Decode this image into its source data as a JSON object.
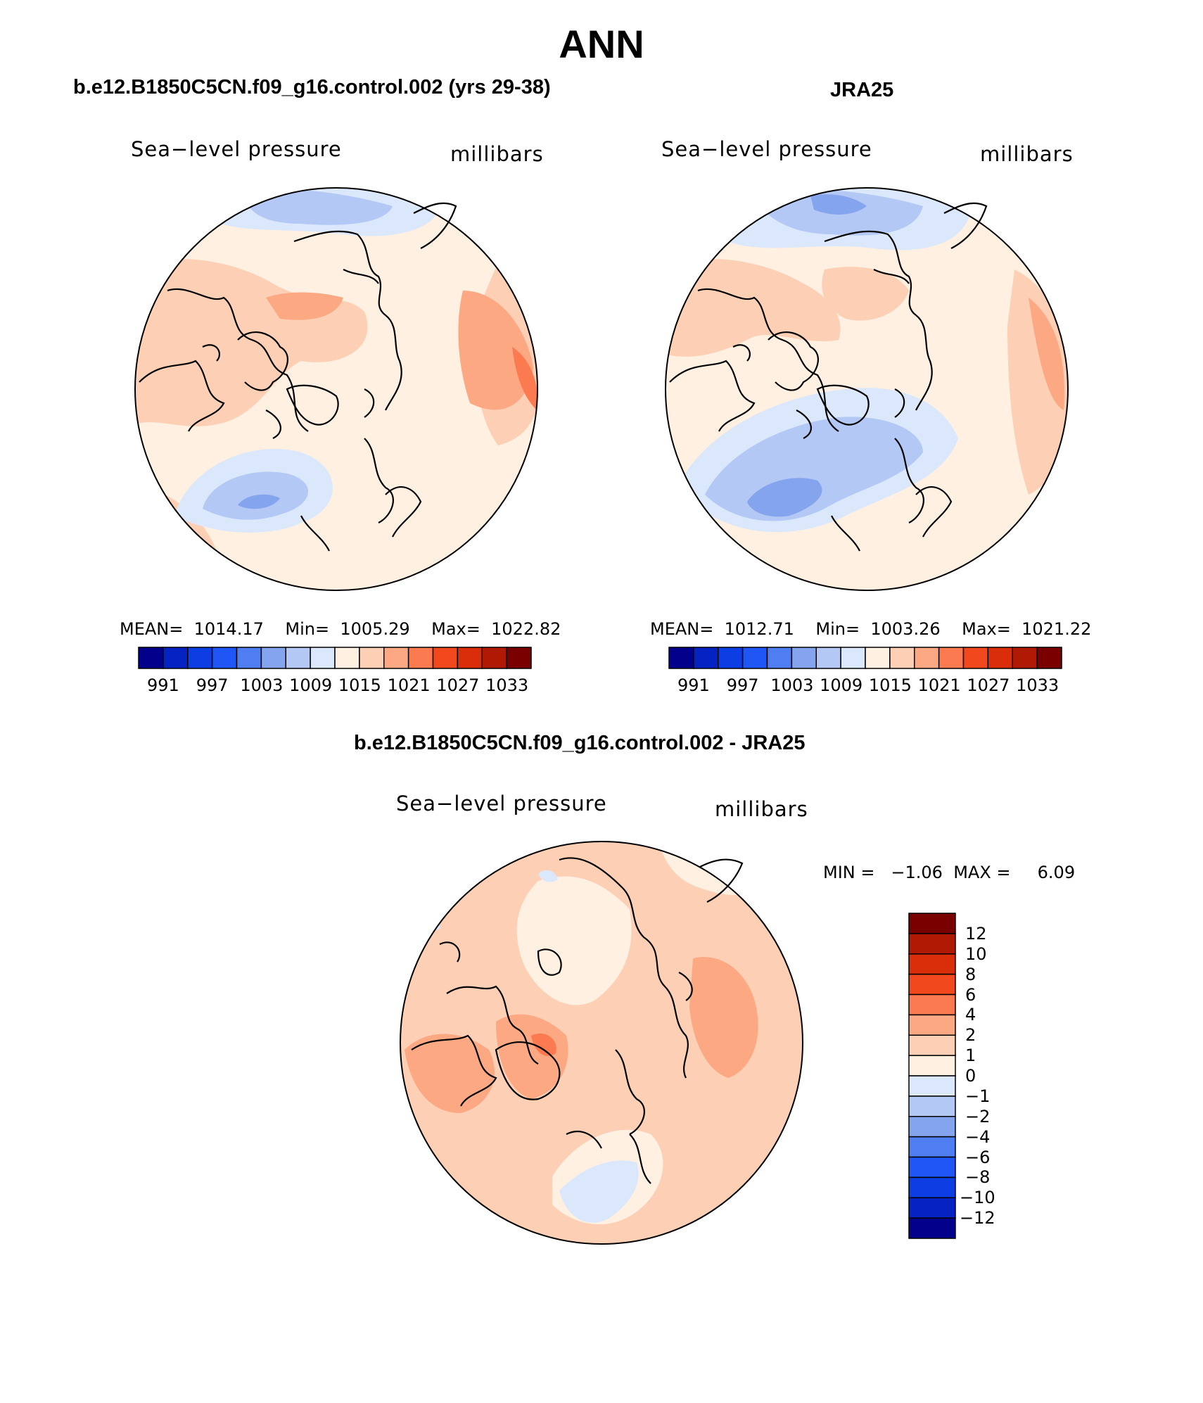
{
  "title": "ANN",
  "panels": [
    {
      "id": "model",
      "title": "b.e12.B1850C5CN.f09_g16.control.002 (yrs 29-38)",
      "left_label": "Sea−level pressure",
      "right_label": "millibars",
      "stats": {
        "mean_label": "MEAN=",
        "mean": "1014.17",
        "min_label": "Min=",
        "min": "1005.29",
        "max_label": "Max=",
        "max": "1022.82"
      }
    },
    {
      "id": "obs",
      "title": "JRA25",
      "left_label": "Sea−level pressure",
      "right_label": "millibars",
      "stats": {
        "mean_label": "MEAN=",
        "mean": "1012.71",
        "min_label": "Min=",
        "min": "1003.26",
        "max_label": "Max=",
        "max": "1021.22"
      }
    },
    {
      "id": "diff",
      "title": "b.e12.B1850C5CN.f09_g16.control.002 - JRA25",
      "left_label": "Sea−level pressure",
      "right_label": "millibars",
      "stats": {
        "min_label": "MIN =",
        "min": "−1.06",
        "max_label": "MAX =",
        "max": "6.09"
      }
    }
  ],
  "colorbar_abs": {
    "tick_labels": [
      "991",
      "997",
      "1003",
      "1009",
      "1015",
      "1021",
      "1027",
      "1033"
    ],
    "colors": [
      "#03008c",
      "#0523c3",
      "#0c3ee3",
      "#1f56f5",
      "#4e7ef2",
      "#85a4ee",
      "#b3c8f5",
      "#dbe8fb",
      "#fff0e1",
      "#fdcfb5",
      "#fba883",
      "#fb7a4f",
      "#f2481d",
      "#d92e09",
      "#b01a04",
      "#7a0000"
    ]
  },
  "colorbar_diff": {
    "tick_labels": [
      "12",
      "10",
      "8",
      "6",
      "4",
      "2",
      "1",
      "0",
      "−1",
      "−2",
      "−4",
      "−6",
      "−8",
      "−10",
      "−12"
    ],
    "colors": [
      "#7a0000",
      "#b01a04",
      "#d92e09",
      "#f2481d",
      "#fb7a4f",
      "#fba883",
      "#fdcfb5",
      "#fff0e1",
      "#dbe8fb",
      "#b3c8f5",
      "#85a4ee",
      "#4e7ef2",
      "#1f56f5",
      "#0c3ee3",
      "#0523c3",
      "#03008c"
    ]
  },
  "chart_data": [
    {
      "type": "heatmap",
      "projection": "north-polar-stereographic",
      "variable": "Sea-level pressure",
      "units": "millibars",
      "title": "b.e12.B1850C5CN.f09_g16.control.002 (yrs 29-38)",
      "levels": [
        991,
        994,
        997,
        1000,
        1003,
        1006,
        1009,
        1012,
        1015,
        1018,
        1021,
        1024,
        1027,
        1030,
        1033
      ],
      "mean": 1014.17,
      "min": 1005.29,
      "max": 1022.82
    },
    {
      "type": "heatmap",
      "projection": "north-polar-stereographic",
      "variable": "Sea-level pressure",
      "units": "millibars",
      "title": "JRA25",
      "levels": [
        991,
        994,
        997,
        1000,
        1003,
        1006,
        1009,
        1012,
        1015,
        1018,
        1021,
        1024,
        1027,
        1030,
        1033
      ],
      "mean": 1012.71,
      "min": 1003.26,
      "max": 1021.22
    },
    {
      "type": "heatmap",
      "projection": "north-polar-stereographic",
      "variable": "Sea-level pressure difference",
      "units": "millibars",
      "title": "b.e12.B1850C5CN.f09_g16.control.002 - JRA25",
      "levels": [
        -12,
        -10,
        -8,
        -6,
        -4,
        -2,
        -1,
        0,
        1,
        2,
        4,
        6,
        8,
        10,
        12
      ],
      "min": -1.06,
      "max": 6.09
    }
  ]
}
